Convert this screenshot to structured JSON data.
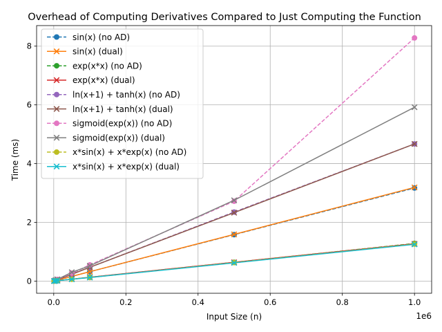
{
  "chart_data": {
    "type": "line",
    "title": "Overhead of Computing Derivatives Compared to Just Computing the Function",
    "xlabel": "Input Size (n)",
    "ylabel": "Time (ms)",
    "x_offset_label": "1e6",
    "x_scale": 1000000,
    "xlim": [
      -47500,
      1047500
    ],
    "ylim": [
      -0.415,
      8.7
    ],
    "xticks": [
      0,
      200000,
      400000,
      600000,
      800000,
      1000000
    ],
    "xtick_labels": [
      "0.0",
      "0.2",
      "0.4",
      "0.6",
      "0.8",
      "1.0"
    ],
    "yticks": [
      0,
      2,
      4,
      6,
      8
    ],
    "ytick_labels": [
      "0",
      "2",
      "4",
      "6",
      "8"
    ],
    "grid": true,
    "legend_position": "upper-left",
    "x": [
      1000,
      5000,
      10000,
      50000,
      100000,
      500000,
      1000000
    ],
    "series": [
      {
        "name": "sin(x) (no AD)",
        "color": "#1f77b4",
        "dash": true,
        "marker": "circle",
        "values": [
          0.003,
          0.016,
          0.032,
          0.16,
          0.32,
          1.58,
          3.17
        ]
      },
      {
        "name": "sin(x) (dual)",
        "color": "#ff7f0e",
        "dash": false,
        "marker": "x",
        "values": [
          0.003,
          0.016,
          0.032,
          0.16,
          0.32,
          1.59,
          3.19
        ]
      },
      {
        "name": "exp(x*x) (no AD)",
        "color": "#2ca02c",
        "dash": true,
        "marker": "circle",
        "values": [
          0.0013,
          0.0064,
          0.013,
          0.064,
          0.13,
          0.64,
          1.28
        ]
      },
      {
        "name": "exp(x*x) (dual)",
        "color": "#d62728",
        "dash": false,
        "marker": "x",
        "values": [
          0.0013,
          0.0064,
          0.013,
          0.064,
          0.13,
          0.64,
          1.27
        ]
      },
      {
        "name": "ln(x+1) + tanh(x) (no AD)",
        "color": "#9467bd",
        "dash": true,
        "marker": "circle",
        "values": [
          0.0047,
          0.024,
          0.047,
          0.24,
          0.47,
          2.35,
          4.67
        ]
      },
      {
        "name": "ln(x+1) + tanh(x) (dual)",
        "color": "#8c564b",
        "dash": false,
        "marker": "x",
        "values": [
          0.0047,
          0.023,
          0.047,
          0.23,
          0.47,
          2.33,
          4.67
        ]
      },
      {
        "name": "sigmoid(exp(x)) (no AD)",
        "color": "#e377c2",
        "dash": true,
        "marker": "circle",
        "values": [
          0.0055,
          0.027,
          0.055,
          0.27,
          0.55,
          2.72,
          8.28
        ]
      },
      {
        "name": "sigmoid(exp(x)) (dual)",
        "color": "#7f7f7f",
        "dash": false,
        "marker": "x",
        "values": [
          0.0059,
          0.03,
          0.059,
          0.3,
          0.52,
          2.75,
          5.92
        ]
      },
      {
        "name": "x*sin(x) + x*exp(x) (no AD)",
        "color": "#bcbd22",
        "dash": true,
        "marker": "circle",
        "values": [
          0.0013,
          0.0063,
          0.013,
          0.063,
          0.12,
          0.63,
          1.26
        ]
      },
      {
        "name": "x*sin(x) + x*exp(x) (dual)",
        "color": "#17becf",
        "dash": false,
        "marker": "x",
        "values": [
          0.0013,
          0.0062,
          0.012,
          0.062,
          0.12,
          0.62,
          1.25
        ]
      }
    ]
  }
}
